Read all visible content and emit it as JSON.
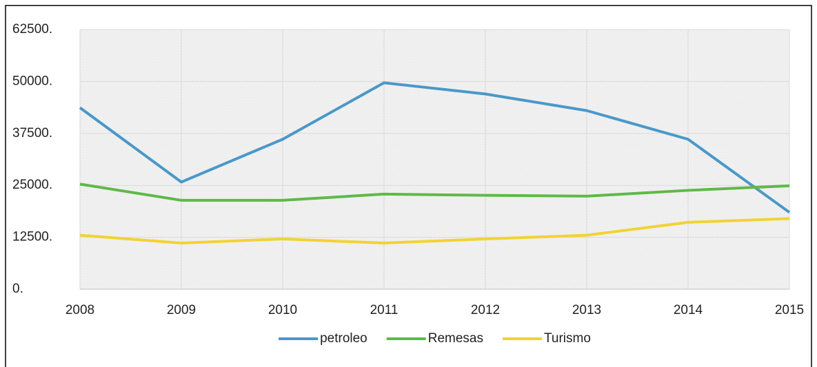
{
  "chart_data": {
    "type": "line",
    "categories": [
      "2008",
      "2009",
      "2010",
      "2011",
      "2012",
      "2013",
      "2014",
      "2015"
    ],
    "series": [
      {
        "name": "petroleo",
        "color": "#4a98c9",
        "values": [
          43700,
          25800,
          36100,
          49700,
          47000,
          43000,
          36100,
          18500
        ]
      },
      {
        "name": "Remesas",
        "color": "#5eb946",
        "values": [
          25300,
          21400,
          21400,
          22900,
          22600,
          22400,
          23800,
          24900
        ]
      },
      {
        "name": "Turismo",
        "color": "#f2d334",
        "values": [
          13000,
          11100,
          12100,
          11100,
          12100,
          13000,
          16100,
          17000
        ]
      }
    ],
    "ylim": [
      0,
      62500
    ],
    "yticks": [
      {
        "value": 0,
        "label": "0."
      },
      {
        "value": 12500,
        "label": "12500."
      },
      {
        "value": 25000,
        "label": "25000."
      },
      {
        "value": 37500,
        "label": "37500."
      },
      {
        "value": 50000,
        "label": "50000."
      },
      {
        "value": 62500,
        "label": "62500."
      }
    ],
    "grid": true,
    "legend": "bottom"
  }
}
